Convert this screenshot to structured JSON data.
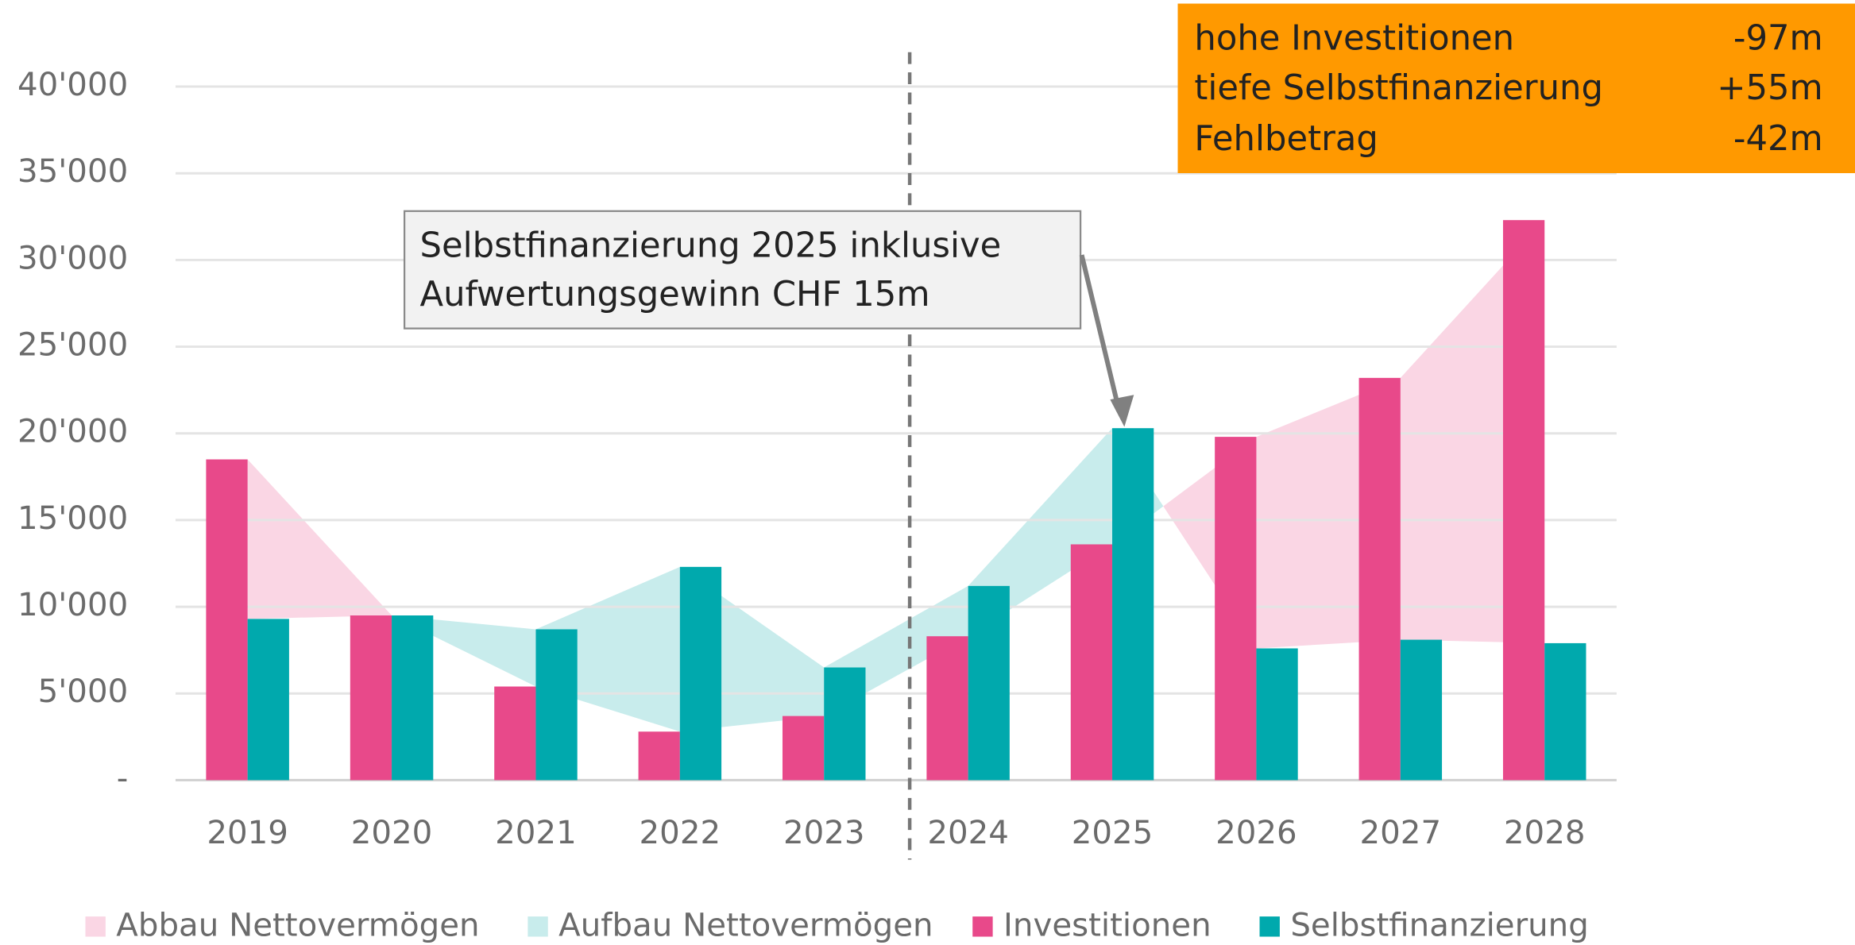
{
  "chart_data": {
    "type": "bar",
    "categories": [
      "2019",
      "2020",
      "2021",
      "2022",
      "2023",
      "2024",
      "2025",
      "2026",
      "2027",
      "2028"
    ],
    "series": [
      {
        "name": "Investitionen",
        "color": "#e8498a",
        "values": [
          18500,
          9500,
          5400,
          2800,
          3700,
          8300,
          13600,
          19800,
          23200,
          32300
        ]
      },
      {
        "name": "Selbstfinanzierung",
        "color": "#00a9ad",
        "values": [
          9300,
          9500,
          8700,
          12300,
          6500,
          11200,
          20300,
          7600,
          8100,
          7900
        ]
      }
    ],
    "area_series": [
      {
        "name": "Abbau Nettovermögen",
        "color": "#fad6e4"
      },
      {
        "name": "Aufbau Nettovermögen",
        "color": "#c8ecec"
      }
    ],
    "ylim": [
      0,
      40000
    ],
    "yticks": [
      {
        "value": 0,
        "label": "-"
      },
      {
        "value": 5000,
        "label": "5'000"
      },
      {
        "value": 10000,
        "label": "10'000"
      },
      {
        "value": 15000,
        "label": "15'000"
      },
      {
        "value": 20000,
        "label": "20'000"
      },
      {
        "value": 25000,
        "label": "25'000"
      },
      {
        "value": 30000,
        "label": "30'000"
      },
      {
        "value": 35000,
        "label": "35'000"
      },
      {
        "value": 40000,
        "label": "40'000"
      }
    ],
    "grid": true,
    "annotation": {
      "lines": [
        "Selbstfinanzierung 2025 inklusive",
        "Aufwertungsgewinn CHF 15m"
      ]
    },
    "info_box": {
      "rows": [
        [
          "hohe Investitionen",
          "-97m"
        ],
        [
          "tiefe Selbstfinanzierung",
          "+55m"
        ],
        [
          "Fehlbetrag",
          "-42m"
        ]
      ]
    }
  }
}
